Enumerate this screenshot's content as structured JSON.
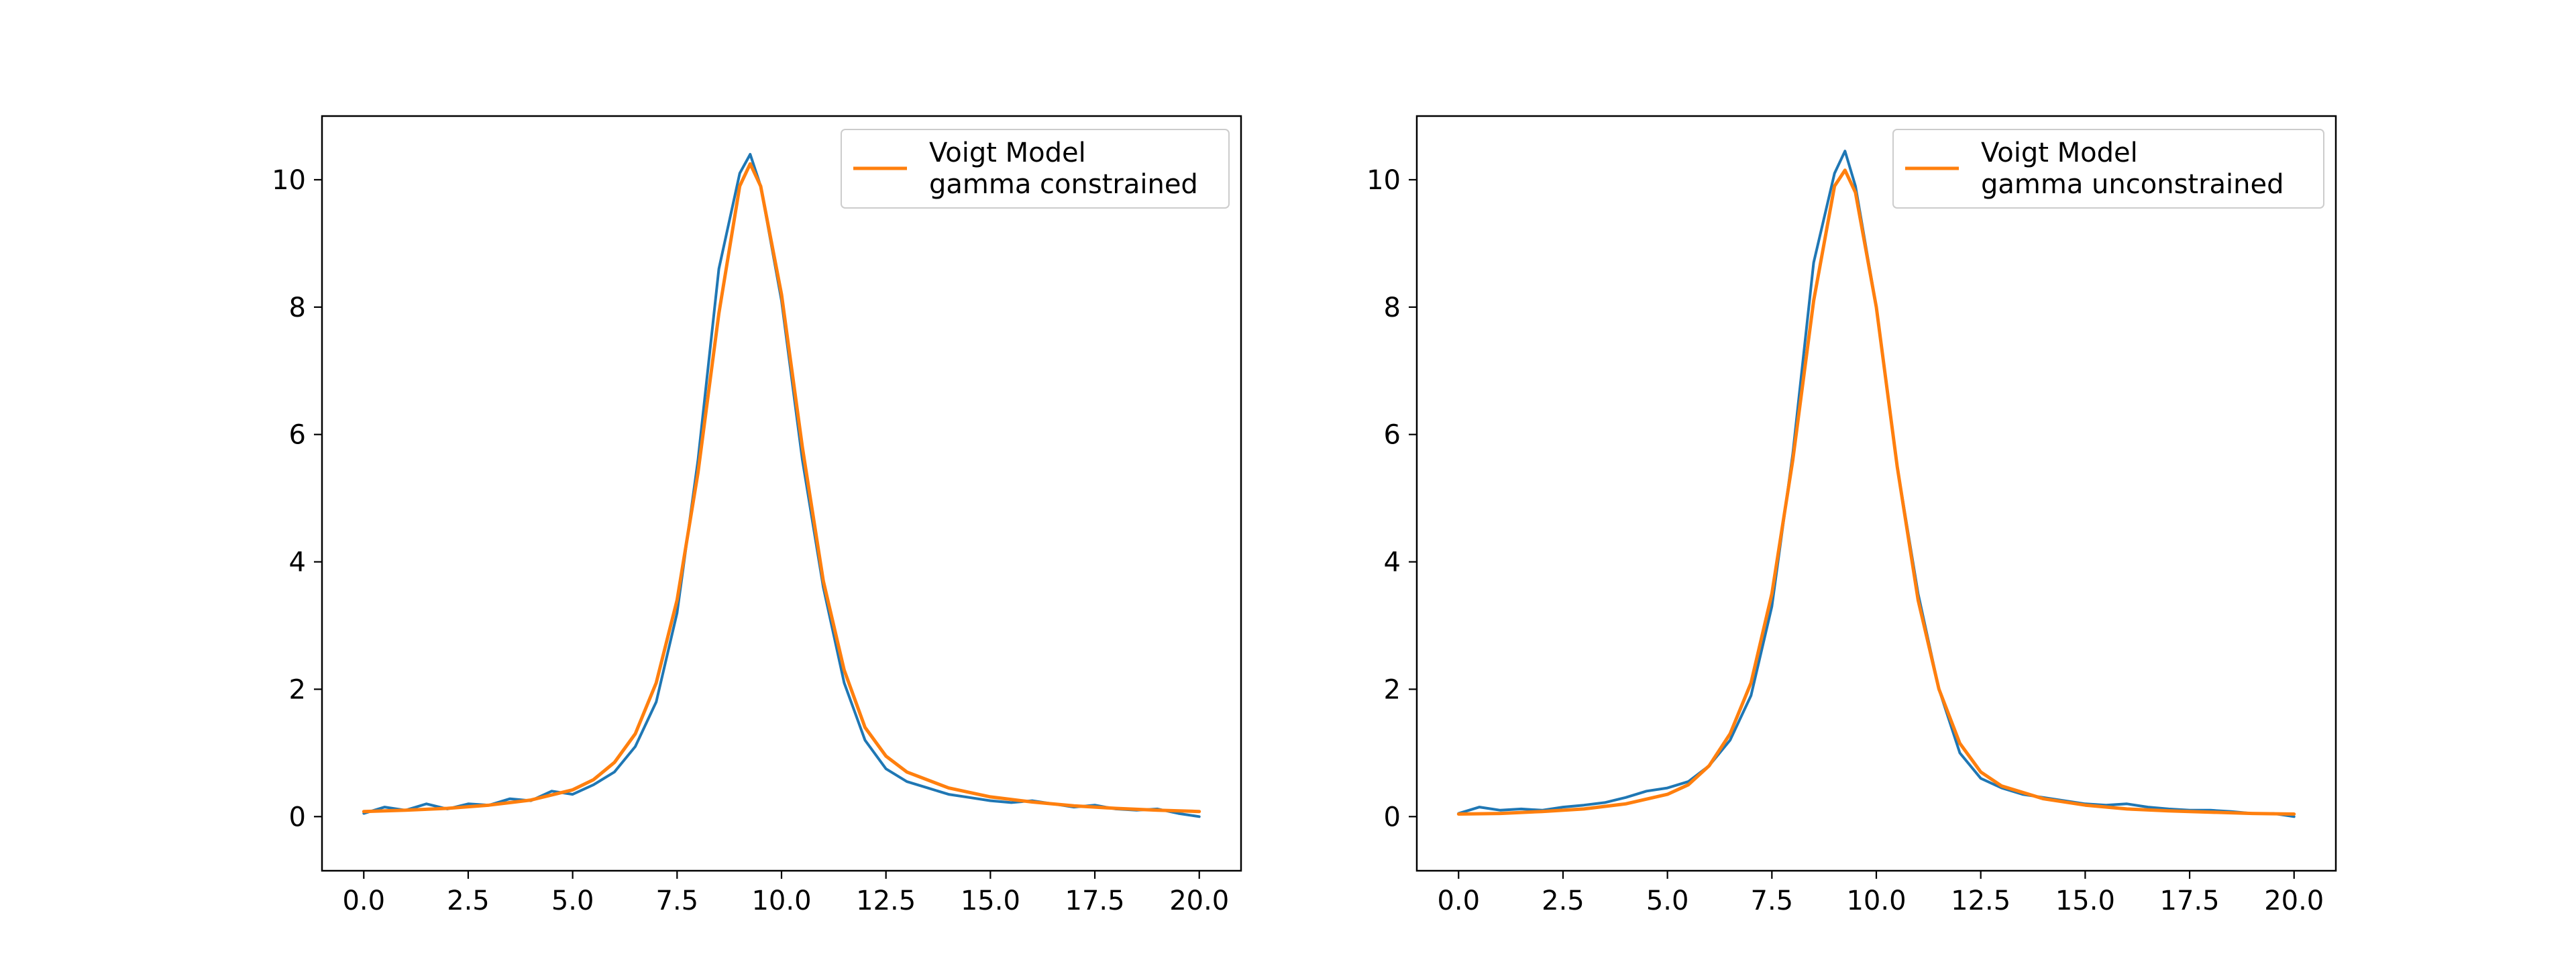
{
  "chart_data": [
    {
      "type": "line",
      "xlim": [
        -1.0,
        21.0
      ],
      "ylim": [
        -0.85,
        11.0
      ],
      "xticks": [
        0.0,
        2.5,
        5.0,
        7.5,
        10.0,
        12.5,
        15.0,
        17.5,
        20.0
      ],
      "xtick_labels": [
        "0.0",
        "2.5",
        "5.0",
        "7.5",
        "10.0",
        "12.5",
        "15.0",
        "17.5",
        "20.0"
      ],
      "yticks": [
        0,
        2,
        4,
        6,
        8,
        10
      ],
      "ytick_labels": [
        "0",
        "2",
        "4",
        "6",
        "8",
        "10"
      ],
      "grid": false,
      "legend_position": "top-right",
      "legend": [
        "Voigt Model",
        "gamma constrained"
      ],
      "series": [
        {
          "role": "data",
          "color": "#1f77b4",
          "x": [
            0.0,
            0.5,
            1.0,
            1.5,
            2.0,
            2.5,
            3.0,
            3.5,
            4.0,
            4.5,
            5.0,
            5.5,
            6.0,
            6.5,
            7.0,
            7.5,
            8.0,
            8.5,
            9.0,
            9.25,
            9.5,
            10.0,
            10.5,
            11.0,
            11.5,
            12.0,
            12.5,
            13.0,
            13.5,
            14.0,
            14.5,
            15.0,
            15.5,
            16.0,
            16.5,
            17.0,
            17.5,
            18.0,
            18.5,
            19.0,
            19.5,
            20.0
          ],
          "y": [
            0.05,
            0.15,
            0.1,
            0.2,
            0.12,
            0.2,
            0.18,
            0.28,
            0.25,
            0.4,
            0.35,
            0.5,
            0.7,
            1.1,
            1.8,
            3.2,
            5.6,
            8.6,
            10.1,
            10.4,
            9.9,
            8.1,
            5.6,
            3.6,
            2.1,
            1.2,
            0.75,
            0.55,
            0.45,
            0.35,
            0.3,
            0.25,
            0.22,
            0.25,
            0.2,
            0.15,
            0.18,
            0.12,
            0.1,
            0.12,
            0.05,
            0.0
          ]
        },
        {
          "role": "model",
          "name": "Voigt Model\ngamma constrained",
          "color": "#ff7f0e",
          "x": [
            0.0,
            1.0,
            2.0,
            3.0,
            4.0,
            5.0,
            5.5,
            6.0,
            6.5,
            7.0,
            7.5,
            8.0,
            8.5,
            9.0,
            9.25,
            9.5,
            10.0,
            10.5,
            11.0,
            11.5,
            12.0,
            12.5,
            13.0,
            14.0,
            15.0,
            16.0,
            17.0,
            18.0,
            19.0,
            20.0
          ],
          "y": [
            0.08,
            0.1,
            0.13,
            0.18,
            0.26,
            0.42,
            0.58,
            0.85,
            1.3,
            2.1,
            3.4,
            5.4,
            7.9,
            9.9,
            10.25,
            9.9,
            8.2,
            5.8,
            3.7,
            2.3,
            1.4,
            0.95,
            0.7,
            0.45,
            0.31,
            0.23,
            0.17,
            0.13,
            0.1,
            0.08
          ]
        }
      ]
    },
    {
      "type": "line",
      "xlim": [
        -1.0,
        21.0
      ],
      "ylim": [
        -0.85,
        11.0
      ],
      "xticks": [
        0.0,
        2.5,
        5.0,
        7.5,
        10.0,
        12.5,
        15.0,
        17.5,
        20.0
      ],
      "xtick_labels": [
        "0.0",
        "2.5",
        "5.0",
        "7.5",
        "10.0",
        "12.5",
        "15.0",
        "17.5",
        "20.0"
      ],
      "yticks": [
        0,
        2,
        4,
        6,
        8,
        10
      ],
      "ytick_labels": [
        "0",
        "2",
        "4",
        "6",
        "8",
        "10"
      ],
      "grid": false,
      "legend_position": "top-right",
      "legend": [
        "Voigt Model",
        "gamma unconstrained"
      ],
      "series": [
        {
          "role": "data",
          "color": "#1f77b4",
          "x": [
            0.0,
            0.5,
            1.0,
            1.5,
            2.0,
            2.5,
            3.0,
            3.5,
            4.0,
            4.5,
            5.0,
            5.5,
            6.0,
            6.5,
            7.0,
            7.5,
            8.0,
            8.5,
            9.0,
            9.25,
            9.5,
            10.0,
            10.5,
            11.0,
            11.5,
            12.0,
            12.5,
            13.0,
            13.5,
            14.0,
            14.5,
            15.0,
            15.5,
            16.0,
            16.5,
            17.0,
            17.5,
            18.0,
            18.5,
            19.0,
            19.5,
            20.0
          ],
          "y": [
            0.05,
            0.15,
            0.1,
            0.12,
            0.1,
            0.15,
            0.18,
            0.22,
            0.3,
            0.4,
            0.45,
            0.55,
            0.8,
            1.2,
            1.9,
            3.3,
            5.7,
            8.7,
            10.1,
            10.45,
            9.9,
            8.0,
            5.5,
            3.5,
            2.0,
            1.0,
            0.6,
            0.45,
            0.35,
            0.3,
            0.25,
            0.2,
            0.18,
            0.2,
            0.15,
            0.12,
            0.1,
            0.1,
            0.08,
            0.05,
            0.05,
            0.0
          ]
        },
        {
          "role": "model",
          "name": "Voigt Model\ngamma unconstrained",
          "color": "#ff7f0e",
          "x": [
            0.0,
            1.0,
            2.0,
            3.0,
            4.0,
            5.0,
            5.5,
            6.0,
            6.5,
            7.0,
            7.5,
            8.0,
            8.5,
            9.0,
            9.25,
            9.5,
            10.0,
            10.5,
            11.0,
            11.5,
            12.0,
            12.5,
            13.0,
            14.0,
            15.0,
            16.0,
            17.0,
            18.0,
            19.0,
            20.0
          ],
          "y": [
            0.04,
            0.05,
            0.08,
            0.12,
            0.2,
            0.35,
            0.5,
            0.8,
            1.3,
            2.1,
            3.5,
            5.6,
            8.1,
            9.9,
            10.15,
            9.8,
            8.0,
            5.5,
            3.4,
            2.0,
            1.15,
            0.7,
            0.48,
            0.28,
            0.18,
            0.12,
            0.09,
            0.07,
            0.05,
            0.04
          ]
        }
      ]
    }
  ]
}
